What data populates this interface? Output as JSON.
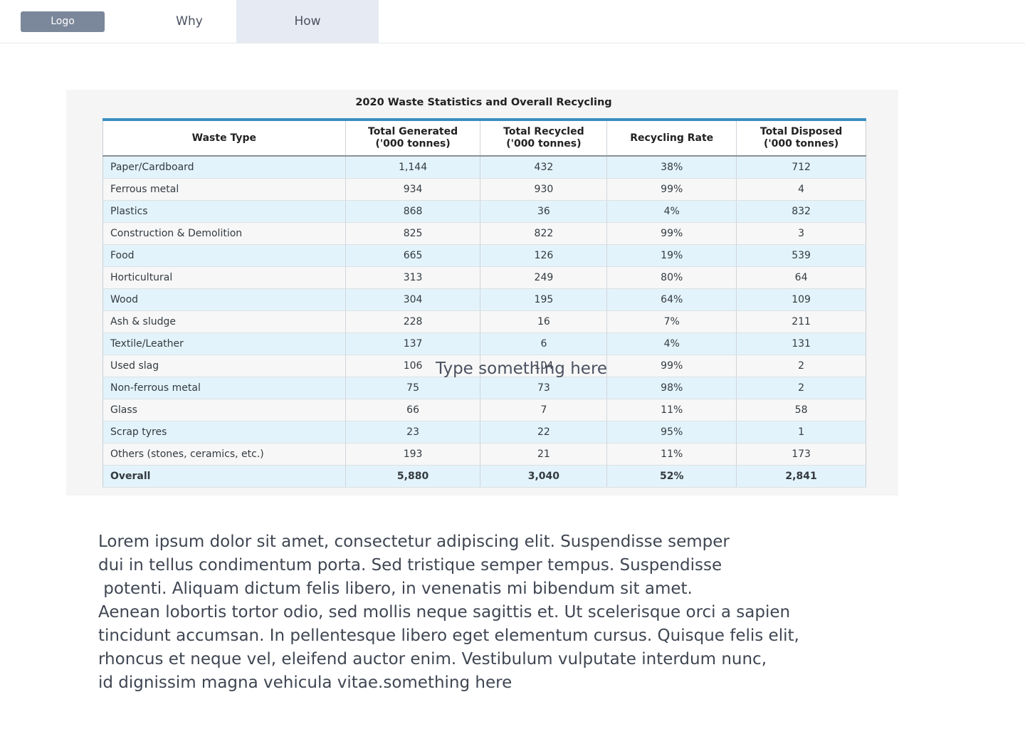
{
  "nav": {
    "logo": "Logo",
    "items": [
      {
        "label": "Why",
        "active": false
      },
      {
        "label": "How",
        "active": true
      }
    ]
  },
  "figure": {
    "title": "2020 Waste Statistics and Overall Recycling",
    "headers": [
      [
        "Waste Type"
      ],
      [
        "Total Generated",
        "('000 tonnes)"
      ],
      [
        "Total Recycled",
        "('000 tonnes)"
      ],
      [
        "Recycling Rate"
      ],
      [
        "Total Disposed",
        "('000 tonnes)"
      ]
    ],
    "rows": [
      [
        "Paper/Cardboard",
        "1,144",
        "432",
        "38%",
        "712"
      ],
      [
        "Ferrous metal",
        "934",
        "930",
        "99%",
        "4"
      ],
      [
        "Plastics",
        "868",
        "36",
        "4%",
        "832"
      ],
      [
        "Construction & Demolition",
        "825",
        "822",
        "99%",
        "3"
      ],
      [
        "Food",
        "665",
        "126",
        "19%",
        "539"
      ],
      [
        "Horticultural",
        "313",
        "249",
        "80%",
        "64"
      ],
      [
        "Wood",
        "304",
        "195",
        "64%",
        "109"
      ],
      [
        "Ash & sludge",
        "228",
        "16",
        "7%",
        "211"
      ],
      [
        "Textile/Leather",
        "137",
        "6",
        "4%",
        "131"
      ],
      [
        "Used slag",
        "106",
        "104",
        "99%",
        "2"
      ],
      [
        "Non-ferrous metal",
        "75",
        "73",
        "98%",
        "2"
      ],
      [
        "Glass",
        "66",
        "7",
        "11%",
        "58"
      ],
      [
        "Scrap tyres",
        "23",
        "22",
        "95%",
        "1"
      ],
      [
        "Others (stones, ceramics, etc.)",
        "193",
        "21",
        "11%",
        "173"
      ],
      [
        "Overall",
        "5,880",
        "3,040",
        "52%",
        "2,841"
      ]
    ]
  },
  "overlay": {
    "placeholder": "Type something here"
  },
  "body": {
    "lines": [
      "Lorem ipsum dolor sit amet, consectetur adipiscing elit. Suspendisse semper",
      "dui in tellus condimentum porta. Sed tristique semper tempus. Suspendisse",
      " potenti. Aliquam dictum felis libero, in venenatis mi bibendum sit amet.",
      "Aenean lobortis tortor odio, sed mollis neque sagittis et. Ut scelerisque orci a sapien",
      "tincidunt accumsan. In pellentesque libero eget elementum cursus. Quisque felis elit,",
      "rhoncus et neque vel, eleifend auctor enim. Vestibulum vulputate interdum nunc,",
      "id dignissim magna vehicula vitae.something here"
    ]
  }
}
